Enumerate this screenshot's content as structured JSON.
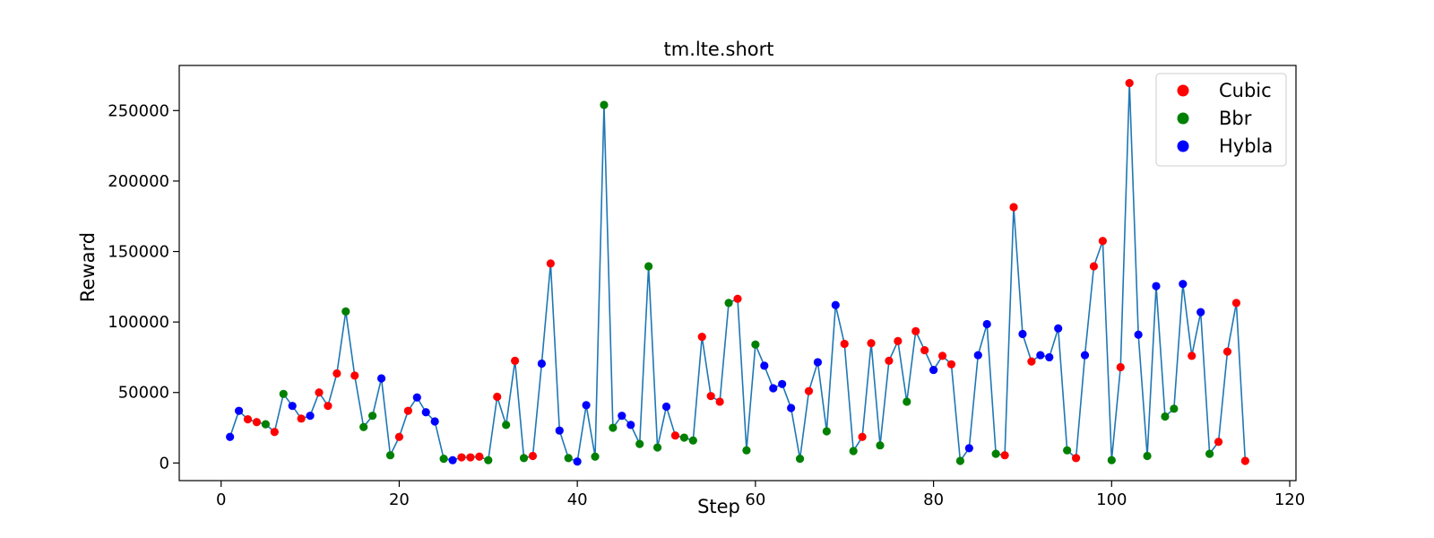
{
  "chart_data": {
    "type": "scatter",
    "title": "tm.lte.short",
    "xlabel": "Step",
    "ylabel": "Reward",
    "xlim": [
      -4.7,
      120.7
    ],
    "ylim": [
      -12500,
      282000
    ],
    "xticks": [
      0,
      20,
      40,
      60,
      80,
      100,
      120
    ],
    "yticks": [
      0,
      50000,
      100000,
      150000,
      200000,
      250000
    ],
    "line_color": "#1f77b4",
    "legend_position": "top-right",
    "legend": [
      {
        "label": "Cubic",
        "color": "#ff0000"
      },
      {
        "label": "Bbr",
        "color": "#008000"
      },
      {
        "label": "Hybla",
        "color": "#0000ff"
      }
    ],
    "points": [
      {
        "x": 1,
        "y": 18500,
        "c": "Hybla"
      },
      {
        "x": 2,
        "y": 37000,
        "c": "Hybla"
      },
      {
        "x": 3,
        "y": 31000,
        "c": "Cubic"
      },
      {
        "x": 4,
        "y": 29000,
        "c": "Cubic"
      },
      {
        "x": 5,
        "y": 27500,
        "c": "Bbr"
      },
      {
        "x": 6,
        "y": 22000,
        "c": "Cubic"
      },
      {
        "x": 7,
        "y": 49000,
        "c": "Bbr"
      },
      {
        "x": 8,
        "y": 40500,
        "c": "Hybla"
      },
      {
        "x": 9,
        "y": 31500,
        "c": "Cubic"
      },
      {
        "x": 10,
        "y": 33500,
        "c": "Hybla"
      },
      {
        "x": 11,
        "y": 50000,
        "c": "Cubic"
      },
      {
        "x": 12,
        "y": 40500,
        "c": "Cubic"
      },
      {
        "x": 13,
        "y": 63500,
        "c": "Cubic"
      },
      {
        "x": 14,
        "y": 107500,
        "c": "Bbr"
      },
      {
        "x": 15,
        "y": 62000,
        "c": "Cubic"
      },
      {
        "x": 16,
        "y": 25500,
        "c": "Bbr"
      },
      {
        "x": 17,
        "y": 33500,
        "c": "Bbr"
      },
      {
        "x": 18,
        "y": 60000,
        "c": "Hybla"
      },
      {
        "x": 19,
        "y": 5500,
        "c": "Bbr"
      },
      {
        "x": 20,
        "y": 18500,
        "c": "Cubic"
      },
      {
        "x": 21,
        "y": 37000,
        "c": "Cubic"
      },
      {
        "x": 22,
        "y": 46500,
        "c": "Hybla"
      },
      {
        "x": 23,
        "y": 36000,
        "c": "Hybla"
      },
      {
        "x": 24,
        "y": 29500,
        "c": "Hybla"
      },
      {
        "x": 25,
        "y": 3000,
        "c": "Bbr"
      },
      {
        "x": 26,
        "y": 2000,
        "c": "Hybla"
      },
      {
        "x": 27,
        "y": 4000,
        "c": "Cubic"
      },
      {
        "x": 28,
        "y": 4000,
        "c": "Cubic"
      },
      {
        "x": 29,
        "y": 4500,
        "c": "Cubic"
      },
      {
        "x": 30,
        "y": 2000,
        "c": "Bbr"
      },
      {
        "x": 31,
        "y": 47000,
        "c": "Cubic"
      },
      {
        "x": 32,
        "y": 27000,
        "c": "Bbr"
      },
      {
        "x": 33,
        "y": 72500,
        "c": "Cubic"
      },
      {
        "x": 34,
        "y": 3500,
        "c": "Bbr"
      },
      {
        "x": 35,
        "y": 5000,
        "c": "Cubic"
      },
      {
        "x": 36,
        "y": 70500,
        "c": "Hybla"
      },
      {
        "x": 37,
        "y": 141500,
        "c": "Cubic"
      },
      {
        "x": 38,
        "y": 23000,
        "c": "Hybla"
      },
      {
        "x": 39,
        "y": 3500,
        "c": "Bbr"
      },
      {
        "x": 40,
        "y": 1000,
        "c": "Hybla"
      },
      {
        "x": 41,
        "y": 41000,
        "c": "Hybla"
      },
      {
        "x": 42,
        "y": 4500,
        "c": "Bbr"
      },
      {
        "x": 43,
        "y": 254000,
        "c": "Bbr"
      },
      {
        "x": 44,
        "y": 25000,
        "c": "Bbr"
      },
      {
        "x": 45,
        "y": 33500,
        "c": "Hybla"
      },
      {
        "x": 46,
        "y": 27000,
        "c": "Hybla"
      },
      {
        "x": 47,
        "y": 13500,
        "c": "Bbr"
      },
      {
        "x": 48,
        "y": 139500,
        "c": "Bbr"
      },
      {
        "x": 49,
        "y": 11000,
        "c": "Bbr"
      },
      {
        "x": 50,
        "y": 40000,
        "c": "Hybla"
      },
      {
        "x": 51,
        "y": 19500,
        "c": "Cubic"
      },
      {
        "x": 52,
        "y": 18000,
        "c": "Bbr"
      },
      {
        "x": 53,
        "y": 16000,
        "c": "Bbr"
      },
      {
        "x": 54,
        "y": 89500,
        "c": "Cubic"
      },
      {
        "x": 55,
        "y": 47500,
        "c": "Cubic"
      },
      {
        "x": 56,
        "y": 43500,
        "c": "Cubic"
      },
      {
        "x": 57,
        "y": 113500,
        "c": "Bbr"
      },
      {
        "x": 58,
        "y": 116500,
        "c": "Cubic"
      },
      {
        "x": 59,
        "y": 9000,
        "c": "Bbr"
      },
      {
        "x": 60,
        "y": 84000,
        "c": "Bbr"
      },
      {
        "x": 61,
        "y": 69000,
        "c": "Hybla"
      },
      {
        "x": 62,
        "y": 53000,
        "c": "Hybla"
      },
      {
        "x": 63,
        "y": 56000,
        "c": "Hybla"
      },
      {
        "x": 64,
        "y": 39000,
        "c": "Hybla"
      },
      {
        "x": 65,
        "y": 3000,
        "c": "Bbr"
      },
      {
        "x": 66,
        "y": 51000,
        "c": "Cubic"
      },
      {
        "x": 67,
        "y": 71500,
        "c": "Hybla"
      },
      {
        "x": 68,
        "y": 22500,
        "c": "Bbr"
      },
      {
        "x": 69,
        "y": 112000,
        "c": "Hybla"
      },
      {
        "x": 70,
        "y": 84500,
        "c": "Cubic"
      },
      {
        "x": 71,
        "y": 8500,
        "c": "Bbr"
      },
      {
        "x": 72,
        "y": 18500,
        "c": "Cubic"
      },
      {
        "x": 73,
        "y": 85000,
        "c": "Cubic"
      },
      {
        "x": 74,
        "y": 12500,
        "c": "Bbr"
      },
      {
        "x": 75,
        "y": 72500,
        "c": "Cubic"
      },
      {
        "x": 76,
        "y": 86500,
        "c": "Cubic"
      },
      {
        "x": 77,
        "y": 43500,
        "c": "Bbr"
      },
      {
        "x": 78,
        "y": 93500,
        "c": "Cubic"
      },
      {
        "x": 79,
        "y": 80000,
        "c": "Cubic"
      },
      {
        "x": 80,
        "y": 66000,
        "c": "Hybla"
      },
      {
        "x": 81,
        "y": 76000,
        "c": "Cubic"
      },
      {
        "x": 82,
        "y": 70000,
        "c": "Cubic"
      },
      {
        "x": 83,
        "y": 1500,
        "c": "Bbr"
      },
      {
        "x": 84,
        "y": 10500,
        "c": "Hybla"
      },
      {
        "x": 85,
        "y": 76500,
        "c": "Hybla"
      },
      {
        "x": 86,
        "y": 98500,
        "c": "Hybla"
      },
      {
        "x": 87,
        "y": 6500,
        "c": "Bbr"
      },
      {
        "x": 88,
        "y": 5500,
        "c": "Cubic"
      },
      {
        "x": 89,
        "y": 181500,
        "c": "Cubic"
      },
      {
        "x": 90,
        "y": 91500,
        "c": "Hybla"
      },
      {
        "x": 91,
        "y": 72000,
        "c": "Cubic"
      },
      {
        "x": 92,
        "y": 76500,
        "c": "Hybla"
      },
      {
        "x": 93,
        "y": 75000,
        "c": "Hybla"
      },
      {
        "x": 94,
        "y": 95500,
        "c": "Hybla"
      },
      {
        "x": 95,
        "y": 9000,
        "c": "Bbr"
      },
      {
        "x": 96,
        "y": 3500,
        "c": "Cubic"
      },
      {
        "x": 97,
        "y": 76500,
        "c": "Hybla"
      },
      {
        "x": 98,
        "y": 139500,
        "c": "Cubic"
      },
      {
        "x": 99,
        "y": 157500,
        "c": "Cubic"
      },
      {
        "x": 100,
        "y": 2000,
        "c": "Bbr"
      },
      {
        "x": 101,
        "y": 68000,
        "c": "Cubic"
      },
      {
        "x": 102,
        "y": 269500,
        "c": "Cubic"
      },
      {
        "x": 103,
        "y": 91000,
        "c": "Hybla"
      },
      {
        "x": 104,
        "y": 5000,
        "c": "Bbr"
      },
      {
        "x": 105,
        "y": 125500,
        "c": "Hybla"
      },
      {
        "x": 106,
        "y": 33000,
        "c": "Bbr"
      },
      {
        "x": 107,
        "y": 38500,
        "c": "Bbr"
      },
      {
        "x": 108,
        "y": 127000,
        "c": "Hybla"
      },
      {
        "x": 109,
        "y": 76000,
        "c": "Cubic"
      },
      {
        "x": 110,
        "y": 107000,
        "c": "Hybla"
      },
      {
        "x": 111,
        "y": 6500,
        "c": "Bbr"
      },
      {
        "x": 112,
        "y": 15000,
        "c": "Cubic"
      },
      {
        "x": 113,
        "y": 79000,
        "c": "Cubic"
      },
      {
        "x": 114,
        "y": 113500,
        "c": "Cubic"
      },
      {
        "x": 115,
        "y": 1500,
        "c": "Cubic"
      }
    ]
  }
}
